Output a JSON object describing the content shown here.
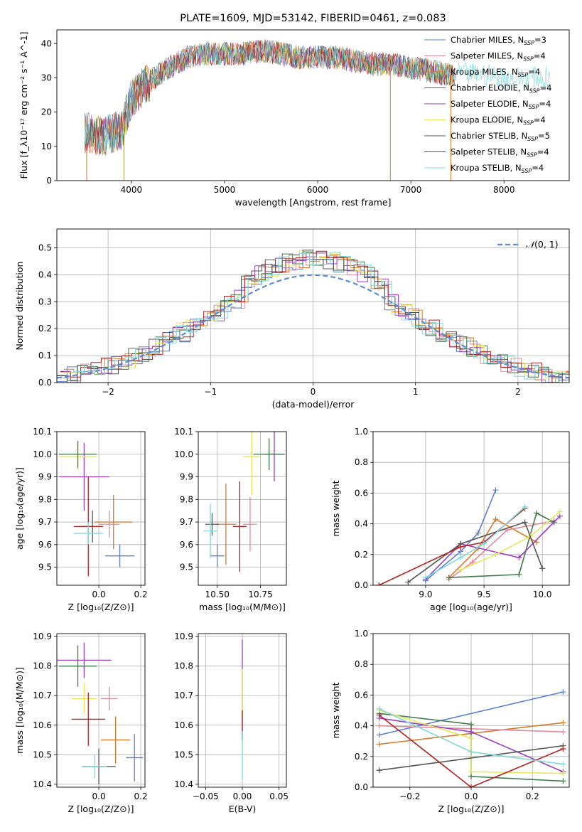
{
  "chart_data": [
    {
      "id": "spectrum",
      "type": "line",
      "title": "PLATE=1609, MJD=53142, FIBERID=0461, z=0.083",
      "xlabel": "wavelength [Angstrom, rest frame]",
      "ylabel": "Flux [f_λ10^-17 erg cm^-2 s^-1 A^-1]",
      "xlim": [
        3200,
        8700
      ],
      "ylim": [
        0,
        44
      ],
      "xticks": [
        4000,
        5000,
        6000,
        7000,
        8000
      ],
      "yticks": [
        0,
        10,
        20,
        30,
        40
      ],
      "grid": false,
      "legend_position": "top-right",
      "legend": [
        {
          "name": "Chabrier MILES, N_SSP=3",
          "color": "#5b7fd6"
        },
        {
          "name": "Salpeter MILES, N_SSP=4",
          "color": "#e08a9a"
        },
        {
          "name": "Kroupa MILES, N_SSP=4",
          "color": "#d67a2a"
        },
        {
          "name": "Chabrier ELODIE, N_SSP=4",
          "color": "#3d7a4a"
        },
        {
          "name": "Salpeter ELODIE, N_SSP=4",
          "color": "#9b3fc0"
        },
        {
          "name": "Kroupa ELODIE, N_SSP=4",
          "color": "#e6e65a"
        },
        {
          "name": "Chabrier STELIB, N_SSP=5",
          "color": "#555555"
        },
        {
          "name": "Salpeter STELIB, N_SSP=4",
          "color": "#b22222"
        },
        {
          "name": "Kroupa STELIB, N_SSP=4",
          "color": "#7fd8d8"
        }
      ],
      "envelope": {
        "x": [
          3500,
          3700,
          3900,
          4000,
          4100,
          4200,
          4400,
          4600,
          4800,
          5000,
          5200,
          5400,
          5600,
          5800,
          6000,
          6200,
          6400,
          6600,
          6800,
          7000,
          7200,
          7400,
          7600,
          7800,
          8000
        ],
        "y": [
          14,
          13,
          15,
          24,
          27,
          29,
          33,
          36,
          37,
          37,
          37,
          38,
          37,
          36,
          36,
          36,
          35,
          34,
          34,
          33,
          32,
          31,
          31,
          31,
          30
        ]
      },
      "cutoffs": [
        3520,
        3920,
        6780,
        7430
      ]
    },
    {
      "id": "residuals",
      "type": "line",
      "xlabel": "(data-model)/error",
      "ylabel": "Normed distribution",
      "xlim": [
        -2.5,
        2.5
      ],
      "ylim": [
        0,
        0.57
      ],
      "xticks": [
        -2,
        -1,
        0,
        1,
        2
      ],
      "yticks": [
        0.0,
        0.1,
        0.2,
        0.3,
        0.4,
        0.5
      ],
      "grid": true,
      "legend_position": "top-right",
      "reference": {
        "name": "N(0,1)",
        "color": "#5b8bd6"
      }
    },
    {
      "id": "age-Z",
      "type": "scatter",
      "xlabel": "Z [log10(Z/Z⊙)]",
      "ylabel": "age [log10(age/yr)]",
      "xlim": [
        -0.2,
        0.22
      ],
      "ylim": [
        9.42,
        10.1
      ],
      "xticks": [
        0.0,
        0.2
      ],
      "xticklabels": [
        "0.0",
        "0.2"
      ],
      "yticks": [
        9.5,
        9.6,
        9.7,
        9.8,
        9.9,
        10.0,
        10.1
      ],
      "grid": true,
      "points": [
        {
          "x": 0.1,
          "y": 9.55,
          "xerr": 0.07,
          "yerr": 0.05,
          "color": "#5b7fd6"
        },
        {
          "x": 0.07,
          "y": 9.7,
          "xerr": 0.09,
          "yerr": 0.12,
          "color": "#d67a2a"
        },
        {
          "x": 0.05,
          "y": 9.69,
          "xerr": 0.05,
          "yerr": 0.06,
          "color": "#e08a9a"
        },
        {
          "x": -0.07,
          "y": 9.9,
          "xerr": 0.12,
          "yerr": 0.15,
          "color": "#9b3fc0"
        },
        {
          "x": -0.1,
          "y": 9.99,
          "xerr": 0.09,
          "yerr": 0.06,
          "color": "#e6e65a"
        },
        {
          "x": -0.1,
          "y": 10.0,
          "xerr": 0.09,
          "yerr": 0.06,
          "color": "#3d7a4a"
        },
        {
          "x": -0.03,
          "y": 9.68,
          "xerr": 0.05,
          "yerr": 0.07,
          "color": "#555555"
        },
        {
          "x": -0.05,
          "y": 9.68,
          "xerr": 0.07,
          "yerr": 0.22,
          "color": "#b22222"
        },
        {
          "x": -0.05,
          "y": 9.65,
          "xerr": 0.07,
          "yerr": 0.05,
          "color": "#7fd8d8"
        }
      ]
    },
    {
      "id": "age-mass",
      "type": "scatter",
      "xlabel": "mass [log10(M/M⊙)]",
      "ylabel": "",
      "xlim": [
        10.39,
        10.9
      ],
      "ylim": [
        9.42,
        10.1
      ],
      "xticks": [
        10.5,
        10.75
      ],
      "xticklabels": [
        "10.50",
        "10.75"
      ],
      "yticks": [
        9.5,
        9.6,
        9.7,
        9.8,
        9.9,
        10.0,
        10.1
      ],
      "grid": true,
      "points": [
        {
          "x": 10.5,
          "y": 9.55,
          "xerr": 0.04,
          "yerr": 0.05,
          "color": "#5b7fd6"
        },
        {
          "x": 10.55,
          "y": 9.69,
          "xerr": 0.06,
          "yerr": 0.18,
          "color": "#d67a2a"
        },
        {
          "x": 10.69,
          "y": 9.69,
          "xerr": 0.04,
          "yerr": 0.12,
          "color": "#e08a9a"
        },
        {
          "x": 10.83,
          "y": 10.0,
          "xerr": 0.06,
          "yerr": 0.12,
          "color": "#9b3fc0"
        },
        {
          "x": 10.7,
          "y": 9.99,
          "xerr": 0.05,
          "yerr": 0.17,
          "color": "#e6e65a"
        },
        {
          "x": 10.8,
          "y": 10.0,
          "xerr": 0.09,
          "yerr": 0.07,
          "color": "#3d7a4a"
        },
        {
          "x": 10.47,
          "y": 9.69,
          "xerr": 0.04,
          "yerr": 0.05,
          "color": "#555555"
        },
        {
          "x": 10.63,
          "y": 9.68,
          "xerr": 0.04,
          "yerr": 0.2,
          "color": "#b22222"
        },
        {
          "x": 10.46,
          "y": 9.66,
          "xerr": 0.04,
          "yerr": 0.12,
          "color": "#7fd8d8"
        }
      ]
    },
    {
      "id": "massweight-age",
      "type": "line",
      "xlabel": "age [log10(age/yr)]",
      "ylabel": "mass weight",
      "xlim": [
        8.55,
        10.23
      ],
      "ylim": [
        0,
        1.0
      ],
      "xticks": [
        9.0,
        9.5,
        10.0
      ],
      "xticklabels": [
        "9.0",
        "9.5",
        "10.0"
      ],
      "yticks": [
        0.0,
        0.2,
        0.4,
        0.6,
        0.8,
        1.0
      ],
      "grid": true,
      "series": [
        {
          "color": "#5b7fd6",
          "x": [
            9.0,
            9.3,
            9.45,
            9.6
          ],
          "y": [
            0.03,
            0.22,
            0.34,
            0.62
          ]
        },
        {
          "color": "#d67a2a",
          "x": [
            9.2,
            9.45,
            9.6,
            9.95
          ],
          "y": [
            0.05,
            0.24,
            0.43,
            0.28
          ]
        },
        {
          "color": "#e08a9a",
          "x": [
            9.2,
            9.4,
            9.7,
            10.1
          ],
          "y": [
            0.04,
            0.15,
            0.36,
            0.42
          ]
        },
        {
          "color": "#3d7a4a",
          "x": [
            9.2,
            9.8,
            9.95,
            10.1
          ],
          "y": [
            0.05,
            0.07,
            0.47,
            0.41
          ]
        },
        {
          "color": "#9b3fc0",
          "x": [
            9.0,
            9.3,
            9.8,
            10.15
          ],
          "y": [
            0.04,
            0.27,
            0.18,
            0.45
          ]
        },
        {
          "color": "#e6e65a",
          "x": [
            9.3,
            9.6,
            9.9,
            10.15
          ],
          "y": [
            0.1,
            0.2,
            0.32,
            0.48
          ]
        },
        {
          "color": "#555555",
          "x": [
            8.85,
            9.3,
            9.85,
            10.0
          ],
          "y": [
            0.02,
            0.27,
            0.41,
            0.11
          ]
        },
        {
          "color": "#b22222",
          "x": [
            8.6,
            9.3,
            9.5,
            9.85
          ],
          "y": [
            0.0,
            0.25,
            0.28,
            0.5
          ]
        },
        {
          "color": "#7fd8d8",
          "x": [
            9.0,
            9.3,
            9.5,
            9.85
          ],
          "y": [
            0.05,
            0.18,
            0.27,
            0.51
          ]
        }
      ]
    },
    {
      "id": "mass-Z",
      "type": "scatter",
      "xlabel": "Z [log10(Z/Z⊙)]",
      "ylabel": "mass [log10(M/M⊙)]",
      "xlim": [
        -0.2,
        0.22
      ],
      "ylim": [
        10.39,
        10.91
      ],
      "xticks": [
        0.0,
        0.2
      ],
      "xticklabels": [
        "0.0",
        "0.2"
      ],
      "yticks": [
        10.4,
        10.5,
        10.6,
        10.7,
        10.8,
        10.9
      ],
      "grid": true,
      "points": [
        {
          "x": 0.17,
          "y": 10.49,
          "xerr": 0.04,
          "yerr": 0.08,
          "color": "#5b7fd6"
        },
        {
          "x": 0.08,
          "y": 10.55,
          "xerr": 0.07,
          "yerr": 0.08,
          "color": "#d67a2a"
        },
        {
          "x": 0.05,
          "y": 10.69,
          "xerr": 0.04,
          "yerr": 0.04,
          "color": "#e08a9a"
        },
        {
          "x": -0.07,
          "y": 10.82,
          "xerr": 0.13,
          "yerr": 0.06,
          "color": "#9b3fc0"
        },
        {
          "x": -0.07,
          "y": 10.69,
          "xerr": 0.06,
          "yerr": 0.05,
          "color": "#e6e65a"
        },
        {
          "x": -0.1,
          "y": 10.8,
          "xerr": 0.09,
          "yerr": 0.07,
          "color": "#3d7a4a"
        },
        {
          "x": 0.0,
          "y": 10.46,
          "xerr": 0.08,
          "yerr": 0.06,
          "color": "#555555"
        },
        {
          "x": -0.05,
          "y": 10.62,
          "xerr": 0.08,
          "yerr": 0.09,
          "color": "#b22222"
        },
        {
          "x": -0.02,
          "y": 10.46,
          "xerr": 0.06,
          "yerr": 0.04,
          "color": "#7fd8d8"
        }
      ]
    },
    {
      "id": "mass-ebv",
      "type": "scatter",
      "xlabel": "E(B-V)",
      "ylabel": "",
      "xlim": [
        -0.06,
        0.06
      ],
      "ylim": [
        10.39,
        10.91
      ],
      "xticks": [
        -0.05,
        0.0,
        0.05
      ],
      "xticklabels": [
        "−0.05",
        "0.00",
        "0.05"
      ],
      "yticks": [
        10.4,
        10.5,
        10.6,
        10.7,
        10.8,
        10.9
      ],
      "grid": true,
      "points": [
        {
          "x": 0.0,
          "y": 10.72,
          "xerr": 0,
          "yerr": 0.17,
          "color": "#9b3fc0"
        },
        {
          "x": 0.0,
          "y": 10.7,
          "xerr": 0,
          "yerr": 0.09,
          "color": "#e6e65a"
        },
        {
          "x": 0.0,
          "y": 10.6,
          "xerr": 0,
          "yerr": 0.05,
          "color": "#b22222"
        },
        {
          "x": 0.0,
          "y": 10.5,
          "xerr": 0,
          "yerr": 0.08,
          "color": "#7fd8d8"
        }
      ]
    },
    {
      "id": "massweight-Z",
      "type": "line",
      "xlabel": "Z [log10(Z/Z⊙)]",
      "ylabel": "mass weight",
      "xlim": [
        -0.32,
        0.32
      ],
      "ylim": [
        0,
        1.0
      ],
      "xticks": [
        -0.2,
        0.0,
        0.2
      ],
      "xticklabels": [
        "−0.2",
        "0.0",
        "0.2"
      ],
      "yticks": [
        0.0,
        0.2,
        0.4,
        0.6,
        0.8,
        1.0
      ],
      "grid": true,
      "series": [
        {
          "color": "#5b7fd6",
          "x": [
            -0.3,
            0.3
          ],
          "y": [
            0.34,
            0.62
          ]
        },
        {
          "color": "#d67a2a",
          "x": [
            -0.3,
            0.3
          ],
          "y": [
            0.28,
            0.42
          ]
        },
        {
          "color": "#e08a9a",
          "x": [
            -0.3,
            0.3
          ],
          "y": [
            0.4,
            0.36
          ]
        },
        {
          "color": "#3d7a4a",
          "x": [
            -0.3,
            0.0,
            0.0,
            0.3
          ],
          "y": [
            0.48,
            0.41,
            0.07,
            0.04
          ]
        },
        {
          "color": "#9b3fc0",
          "x": [
            -0.3,
            0.0,
            0.3
          ],
          "y": [
            0.45,
            0.36,
            0.1
          ]
        },
        {
          "color": "#e6e65a",
          "x": [
            -0.3,
            0.0,
            0.0,
            0.3
          ],
          "y": [
            0.5,
            0.32,
            0.1,
            0.09
          ]
        },
        {
          "color": "#555555",
          "x": [
            -0.3,
            0.3
          ],
          "y": [
            0.11,
            0.27
          ]
        },
        {
          "color": "#b22222",
          "x": [
            -0.3,
            0.0,
            0.3
          ],
          "y": [
            0.47,
            0.0,
            0.25
          ]
        },
        {
          "color": "#7fd8d8",
          "x": [
            -0.3,
            0.0,
            0.3
          ],
          "y": [
            0.51,
            0.23,
            0.15
          ]
        }
      ]
    }
  ]
}
